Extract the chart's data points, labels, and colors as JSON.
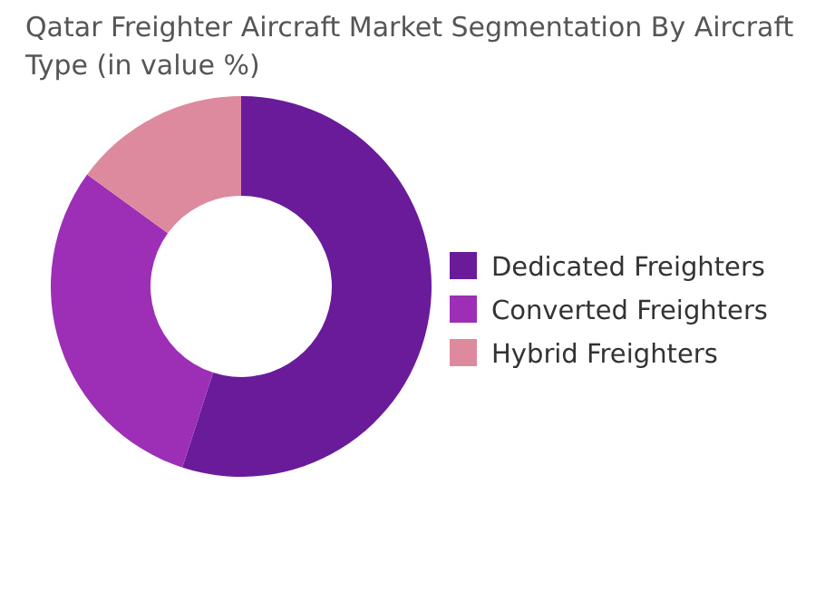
{
  "chart_data": {
    "type": "donut",
    "title": "Qatar Freighter Aircraft Market Segmentation By Aircraft Type  (in value %)",
    "categories": [
      "Dedicated Freighters",
      "Converted Freighters",
      "Hybrid Freighters"
    ],
    "values": [
      55,
      30,
      15
    ],
    "colors": [
      "#6a1b9a",
      "#9c2fb5",
      "#de8a9e"
    ],
    "legend": "right"
  }
}
